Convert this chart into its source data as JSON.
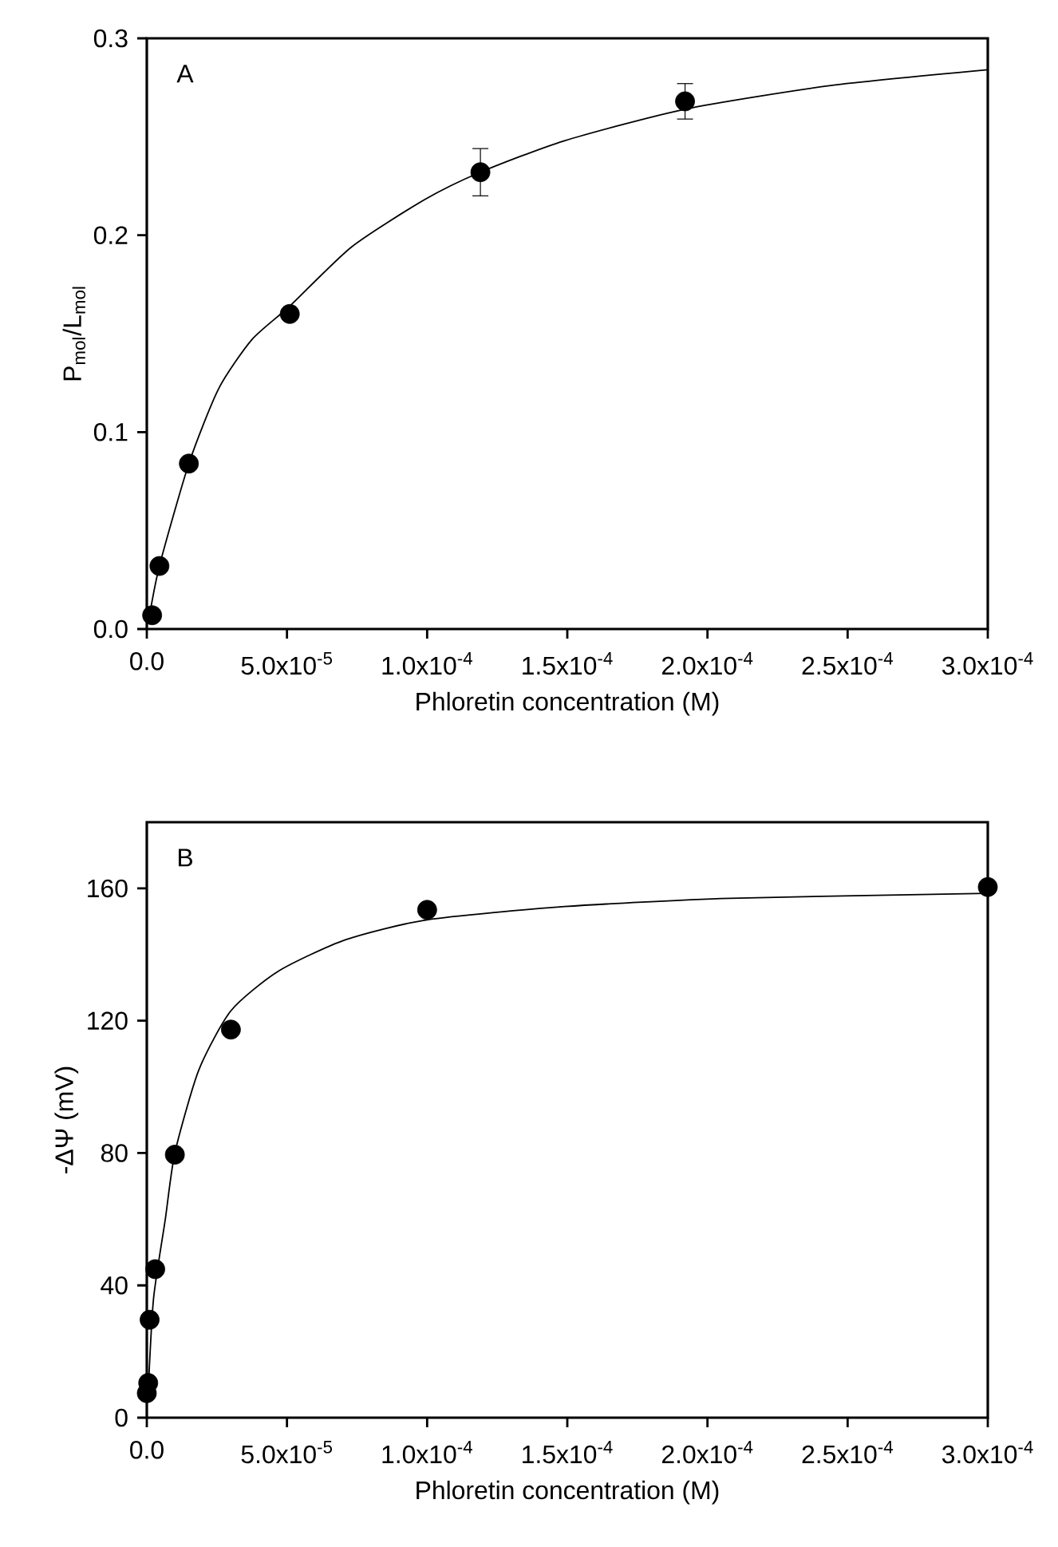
{
  "chart_data": [
    {
      "type": "scatter",
      "xlabel": "Phloretin concentration (M)",
      "ylabel": "P$_{mol}$/L$_{mol}$",
      "annotations": [
        "A"
      ],
      "grid": false,
      "xlim": [
        0,
        0.0003
      ],
      "ylim": [
        0,
        0.3
      ],
      "xticks": [
        {
          "value": 0,
          "label": "0.0"
        },
        {
          "value": 5e-05,
          "label": "5.0x10$^{-5}$"
        },
        {
          "value": 0.0001,
          "label": "1.0x10$^{-4}$"
        },
        {
          "value": 0.00015,
          "label": "1.5x10$^{-4}$"
        },
        {
          "value": 0.0002,
          "label": "2.0x10$^{-4}$"
        },
        {
          "value": 0.00025,
          "label": "2.5x10$^{-4}$"
        },
        {
          "value": 0.0003,
          "label": "3.0x10$^{-4}$"
        }
      ],
      "yticks": [
        {
          "value": 0,
          "label": "0.0"
        },
        {
          "value": 0.1,
          "label": "0.1"
        },
        {
          "value": 0.2,
          "label": "0.2"
        },
        {
          "value": 0.3,
          "label": "0.3"
        }
      ],
      "series": [
        {
          "marker": "circle",
          "color": "#000000",
          "x": [
            1.9e-06,
            4.5e-06,
            1.5e-05,
            5.1e-05,
            0.000119,
            0.000192
          ],
          "values": [
            0.007,
            0.032,
            0.084,
            0.16,
            0.232,
            0.268
          ],
          "errors": [
            null,
            null,
            null,
            null,
            0.012,
            0.009
          ]
        },
        {
          "type": "line",
          "color": "#000000",
          "marker": "none",
          "x": [
            5e-07,
            4.5e-06,
            1.5e-05,
            2.56e-05,
            3.75e-05,
            5.1e-05,
            7.3e-05,
            9.9e-05,
            0.000119,
            0.000149,
            0.000192,
            0.000244,
            0.0003
          ],
          "values": [
            0.003,
            0.032,
            0.084,
            0.122,
            0.147,
            0.164,
            0.194,
            0.218,
            0.232,
            0.248,
            0.264,
            0.276,
            0.284
          ]
        }
      ]
    },
    {
      "type": "scatter",
      "xlabel": "Phloretin concentration (M)",
      "ylabel": "-ΔΨ (mV)",
      "annotations": [
        "B"
      ],
      "grid": false,
      "xlim": [
        0,
        0.0003
      ],
      "ylim": [
        0,
        180
      ],
      "xticks": [
        {
          "value": 0,
          "label": "0.0"
        },
        {
          "value": 5e-05,
          "label": "5.0x10$^{-5}$"
        },
        {
          "value": 0.0001,
          "label": "1.0x10$^{-4}$"
        },
        {
          "value": 0.00015,
          "label": "1.5x10$^{-4}$"
        },
        {
          "value": 0.0002,
          "label": "2.0x10$^{-4}$"
        },
        {
          "value": 0.00025,
          "label": "2.5x10$^{-4}$"
        },
        {
          "value": 0.0003,
          "label": "3.0x10$^{-4}$"
        }
      ],
      "yticks": [
        0,
        40,
        80,
        120,
        160
      ],
      "series": [
        {
          "marker": "circle",
          "color": "#000000",
          "x": [
            0,
            5e-07,
            1e-06,
            3e-06,
            1e-05,
            3e-05,
            0.0001,
            0.0003
          ],
          "values": [
            7.4,
            10.5,
            29.6,
            44.9,
            79.5,
            117.3,
            153.5,
            160.4
          ]
        },
        {
          "type": "line",
          "color": "#000000",
          "marker": "none",
          "x": [
            5e-07,
            2.4e-06,
            6.6e-06,
            1e-05,
            1.85e-05,
            3e-05,
            4.7e-05,
            7.1e-05,
            0.0001,
            0.000149,
            0.000208,
            0.0003
          ],
          "values": [
            8,
            36,
            60,
            80,
            105,
            123,
            135,
            144.5,
            150.5,
            154.5,
            157,
            158.5
          ]
        }
      ]
    }
  ]
}
